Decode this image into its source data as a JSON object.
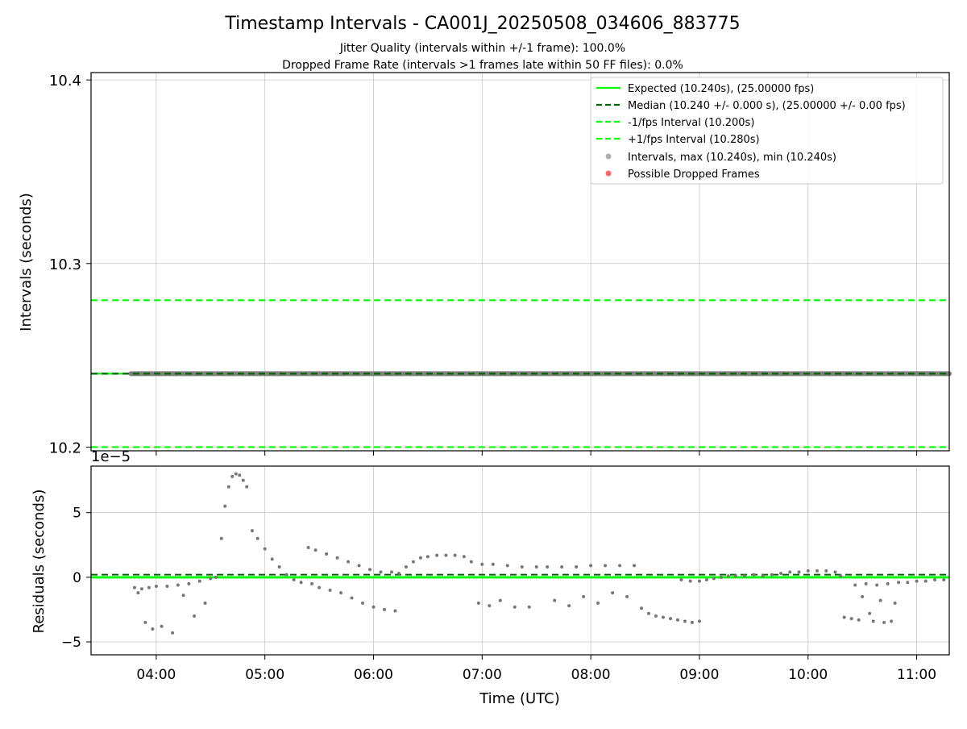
{
  "figure": {
    "title": "Timestamp Intervals - CA001J_20250508_034606_883775",
    "subtitle_1": "Jitter Quality (intervals within +/-1 frame): 100.0%",
    "subtitle_2": "Dropped Frame Rate (intervals >1 frames late within 50 FF files): 0.0%"
  },
  "chart_data": [
    {
      "type": "scatter",
      "panel": "top",
      "ylabel": "Intervals (seconds)",
      "xlabel": "",
      "xlim": [
        "03:24",
        "11:18"
      ],
      "ylim": [
        10.198,
        10.404
      ],
      "yticks": [
        10.2,
        10.3,
        10.4
      ],
      "ytick_labels": [
        "10.2",
        "10.3",
        "10.4"
      ],
      "xticks": [
        "04:00",
        "05:00",
        "06:00",
        "07:00",
        "08:00",
        "09:00",
        "10:00",
        "11:00"
      ],
      "grid": true,
      "legend_position": "upper right",
      "legend": [
        {
          "label": "Expected (10.240s), (25.00000 fps)",
          "style": "solid",
          "color": "#00ff00"
        },
        {
          "label": "Median (10.240 +/- 0.000 s), (25.00000 +/- 0.00 fps)",
          "style": "dashed",
          "color": "#006400"
        },
        {
          "label": "-1/fps Interval (10.200s)",
          "style": "dashed",
          "color": "#00ff00"
        },
        {
          "label": "+1/fps Interval (10.280s)",
          "style": "dashed",
          "color": "#00ff00"
        },
        {
          "label": "Intervals, max (10.240s), min (10.240s)",
          "style": "marker",
          "color": "#b0b0b0"
        },
        {
          "label": "Possible Dropped Frames",
          "style": "marker",
          "color": "#ff6666"
        }
      ],
      "lines": {
        "expected": 10.24,
        "median": 10.24,
        "minus_one_fps": 10.2,
        "plus_one_fps": 10.28
      },
      "intervals": {
        "x_start": "03:46",
        "x_end": "11:18",
        "value": 10.24
      }
    },
    {
      "type": "scatter",
      "panel": "bottom",
      "ylabel": "Residuals (seconds)",
      "xlabel": "Time (UTC)",
      "offset_label": "1e−5",
      "xlim": [
        "03:24",
        "11:18"
      ],
      "ylim": [
        -6,
        8.6
      ],
      "yticks": [
        -5,
        0,
        5
      ],
      "ytick_labels": [
        "−5",
        "0",
        "5"
      ],
      "xticks": [
        "04:00",
        "05:00",
        "06:00",
        "07:00",
        "08:00",
        "09:00",
        "10:00",
        "11:00"
      ],
      "grid": true,
      "lines": {
        "expected": 0,
        "median": 0.2
      },
      "residuals": [
        [
          "03:48",
          -0.8
        ],
        [
          "03:50",
          -1.2
        ],
        [
          "03:52",
          -0.9
        ],
        [
          "03:54",
          -3.5
        ],
        [
          "03:56",
          -0.8
        ],
        [
          "03:58",
          -4.0
        ],
        [
          "04:00",
          -0.7
        ],
        [
          "04:03",
          -3.8
        ],
        [
          "04:06",
          -0.7
        ],
        [
          "04:09",
          -4.3
        ],
        [
          "04:12",
          -0.6
        ],
        [
          "04:15",
          -1.4
        ],
        [
          "04:18",
          -0.5
        ],
        [
          "04:21",
          -3.0
        ],
        [
          "04:24",
          -0.3
        ],
        [
          "04:27",
          -2.0
        ],
        [
          "04:30",
          -0.1
        ],
        [
          "04:33",
          0.0
        ],
        [
          "04:36",
          3.0
        ],
        [
          "04:38",
          5.5
        ],
        [
          "04:40",
          7.0
        ],
        [
          "04:42",
          7.8
        ],
        [
          "04:44",
          8.0
        ],
        [
          "04:46",
          7.9
        ],
        [
          "04:48",
          7.5
        ],
        [
          "04:50",
          7.0
        ],
        [
          "04:53",
          3.6
        ],
        [
          "04:56",
          3.0
        ],
        [
          "05:00",
          2.2
        ],
        [
          "05:04",
          1.4
        ],
        [
          "05:08",
          0.8
        ],
        [
          "05:12",
          0.2
        ],
        [
          "05:16",
          -0.2
        ],
        [
          "05:20",
          -0.4
        ],
        [
          "05:24",
          2.3
        ],
        [
          "05:26",
          -0.5
        ],
        [
          "05:28",
          2.1
        ],
        [
          "05:30",
          -0.8
        ],
        [
          "05:34",
          1.8
        ],
        [
          "05:36",
          -1.0
        ],
        [
          "05:40",
          1.5
        ],
        [
          "05:42",
          -1.2
        ],
        [
          "05:46",
          1.2
        ],
        [
          "05:48",
          -1.6
        ],
        [
          "05:52",
          0.9
        ],
        [
          "05:54",
          -2.0
        ],
        [
          "05:58",
          0.6
        ],
        [
          "06:00",
          -2.3
        ],
        [
          "06:04",
          0.4
        ],
        [
          "06:06",
          -2.5
        ],
        [
          "06:10",
          0.4
        ],
        [
          "06:12",
          -2.6
        ],
        [
          "06:14",
          0.3
        ],
        [
          "06:18",
          0.8
        ],
        [
          "06:22",
          1.2
        ],
        [
          "06:26",
          1.5
        ],
        [
          "06:30",
          1.6
        ],
        [
          "06:35",
          1.7
        ],
        [
          "06:40",
          1.7
        ],
        [
          "06:45",
          1.7
        ],
        [
          "06:50",
          1.6
        ],
        [
          "06:54",
          1.2
        ],
        [
          "06:58",
          -2.0
        ],
        [
          "07:00",
          1.0
        ],
        [
          "07:04",
          -2.2
        ],
        [
          "07:06",
          1.0
        ],
        [
          "07:10",
          -1.8
        ],
        [
          "07:14",
          0.9
        ],
        [
          "07:18",
          -2.3
        ],
        [
          "07:22",
          0.8
        ],
        [
          "07:26",
          -2.3
        ],
        [
          "07:30",
          0.8
        ],
        [
          "07:36",
          0.8
        ],
        [
          "07:40",
          -1.8
        ],
        [
          "07:44",
          0.8
        ],
        [
          "07:48",
          -2.2
        ],
        [
          "07:52",
          0.8
        ],
        [
          "07:56",
          -1.5
        ],
        [
          "08:00",
          0.9
        ],
        [
          "08:04",
          -2.0
        ],
        [
          "08:08",
          0.9
        ],
        [
          "08:12",
          -1.2
        ],
        [
          "08:16",
          0.9
        ],
        [
          "08:20",
          -1.5
        ],
        [
          "08:24",
          0.9
        ],
        [
          "08:28",
          -2.4
        ],
        [
          "08:32",
          -2.8
        ],
        [
          "08:36",
          -3.0
        ],
        [
          "08:40",
          -3.1
        ],
        [
          "08:44",
          -3.2
        ],
        [
          "08:48",
          -3.3
        ],
        [
          "08:52",
          -3.4
        ],
        [
          "08:56",
          -3.5
        ],
        [
          "09:00",
          -3.4
        ],
        [
          "08:50",
          -0.2
        ],
        [
          "08:55",
          -0.3
        ],
        [
          "09:00",
          -0.3
        ],
        [
          "09:04",
          -0.2
        ],
        [
          "09:08",
          -0.1
        ],
        [
          "09:12",
          0.0
        ],
        [
          "09:16",
          0.1
        ],
        [
          "09:20",
          0.1
        ],
        [
          "09:25",
          0.1
        ],
        [
          "09:30",
          0.2
        ],
        [
          "09:35",
          0.1
        ],
        [
          "09:40",
          0.2
        ],
        [
          "09:45",
          0.3
        ],
        [
          "09:50",
          0.4
        ],
        [
          "09:55",
          0.4
        ],
        [
          "10:00",
          0.5
        ],
        [
          "10:05",
          0.5
        ],
        [
          "10:10",
          0.5
        ],
        [
          "10:15",
          0.4
        ],
        [
          "10:18",
          0.1
        ],
        [
          "10:20",
          -3.1
        ],
        [
          "10:24",
          -3.2
        ],
        [
          "10:26",
          -0.6
        ],
        [
          "10:28",
          -3.3
        ],
        [
          "10:30",
          -1.5
        ],
        [
          "10:32",
          -0.5
        ],
        [
          "10:34",
          -2.8
        ],
        [
          "10:36",
          -3.4
        ],
        [
          "10:38",
          -0.6
        ],
        [
          "10:40",
          -1.8
        ],
        [
          "10:42",
          -3.5
        ],
        [
          "10:44",
          -0.5
        ],
        [
          "10:46",
          -3.4
        ],
        [
          "10:48",
          -2.0
        ],
        [
          "10:50",
          -0.4
        ],
        [
          "10:55",
          -0.4
        ],
        [
          "11:00",
          -0.3
        ],
        [
          "11:05",
          -0.3
        ],
        [
          "11:10",
          -0.2
        ],
        [
          "11:15",
          -0.2
        ]
      ]
    }
  ]
}
